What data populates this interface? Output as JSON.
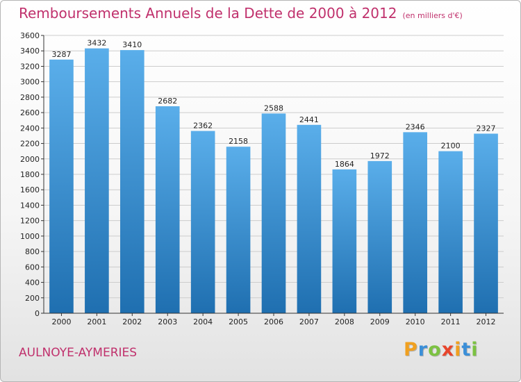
{
  "chart_data": {
    "type": "bar",
    "title": "Remboursements Annuels de la Dette de 2000 à 2012",
    "unit_note": "(en milliers d'€)",
    "categories": [
      "2000",
      "2001",
      "2002",
      "2003",
      "2004",
      "2005",
      "2006",
      "2007",
      "2008",
      "2009",
      "2010",
      "2011",
      "2012"
    ],
    "values": [
      3287,
      3432,
      3410,
      2682,
      2362,
      2158,
      2588,
      2441,
      1864,
      1972,
      2346,
      2100,
      2327
    ],
    "ylim": [
      0,
      3600
    ],
    "ytick_step": 200,
    "grid": true,
    "legend": "none",
    "bar_color_top": "#5aaeea",
    "bar_color_bottom": "#1f6fb0",
    "grid_color": "#cccccc"
  },
  "place_name": "AULNOYE-AYMERIES",
  "logo": {
    "text": "Proxiti",
    "letters": [
      {
        "ch": "P",
        "color": "#f0a020"
      },
      {
        "ch": "r",
        "color": "#3b8fd8"
      },
      {
        "ch": "o",
        "color": "#7cc242"
      },
      {
        "ch": "x",
        "color": "#e8452c"
      },
      {
        "ch": "i",
        "color": "#f0a020"
      },
      {
        "ch": "t",
        "color": "#3b8fd8"
      },
      {
        "ch": "i",
        "color": "#7cc242"
      }
    ]
  }
}
